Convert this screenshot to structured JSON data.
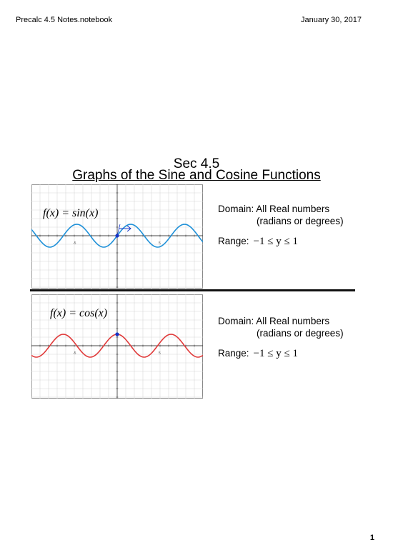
{
  "header": {
    "notebook_title": "Precalc 4.5 Notes.notebook",
    "date": "January 30, 2017"
  },
  "section": {
    "number": "Sec 4.5",
    "title": "Graphs of the Sine and Cosine Functions"
  },
  "sine": {
    "label": "f(x) = sin(x)",
    "color": "#1e90d8",
    "domain_label": "Domain:",
    "domain_value": "All Real numbers",
    "domain_note": "(radians or degrees)",
    "range_label": "Range:",
    "range_value": "−1 ≤ y ≤ 1",
    "tick_left": "-5",
    "tick_right": "5"
  },
  "cosine": {
    "label": "f(x) = cos(x)",
    "color": "#e03a3a",
    "domain_label": "Domain:",
    "domain_value": "All Real numbers",
    "domain_note": "(radians or degrees)",
    "range_label": "Range:",
    "range_value": "−1 ≤ y ≤ 1",
    "tick_left": "-5",
    "tick_right": "5"
  },
  "page": {
    "number": "1"
  }
}
